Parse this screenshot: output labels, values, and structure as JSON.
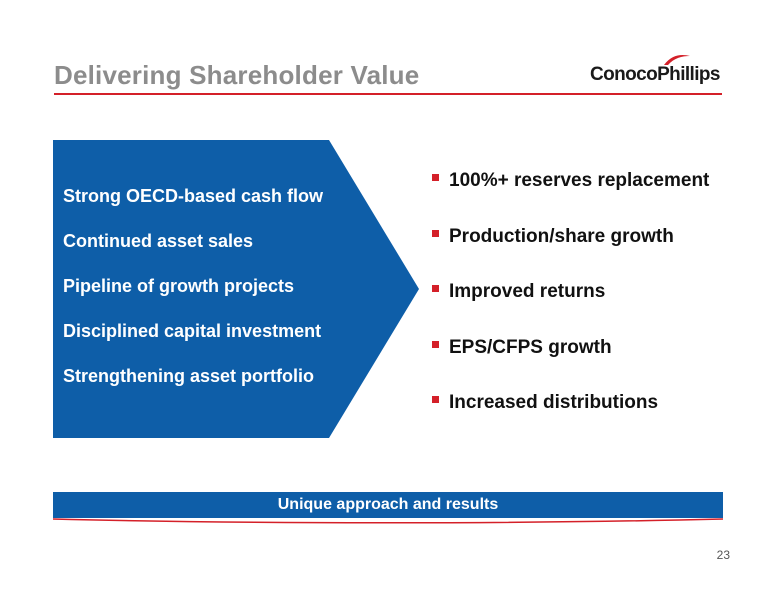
{
  "slide": {
    "title": "Delivering Shareholder Value",
    "logo": "ConocoPhillips",
    "page_number": "23"
  },
  "chevron": {
    "items": [
      "Strong OECD-based cash flow",
      "Continued asset sales",
      "Pipeline of growth projects",
      "Disciplined capital investment",
      "Strengthening asset portfolio"
    ]
  },
  "results": {
    "items": [
      "100%+ reserves replacement",
      "Production/share growth",
      "Improved returns",
      "EPS/CFPS growth",
      "Increased distributions"
    ]
  },
  "footer_bar": {
    "label": "Unique approach and results"
  },
  "colors": {
    "brand_blue": "#0e5ea8",
    "accent_red": "#d42029",
    "title_gray": "#8c8c8c"
  }
}
